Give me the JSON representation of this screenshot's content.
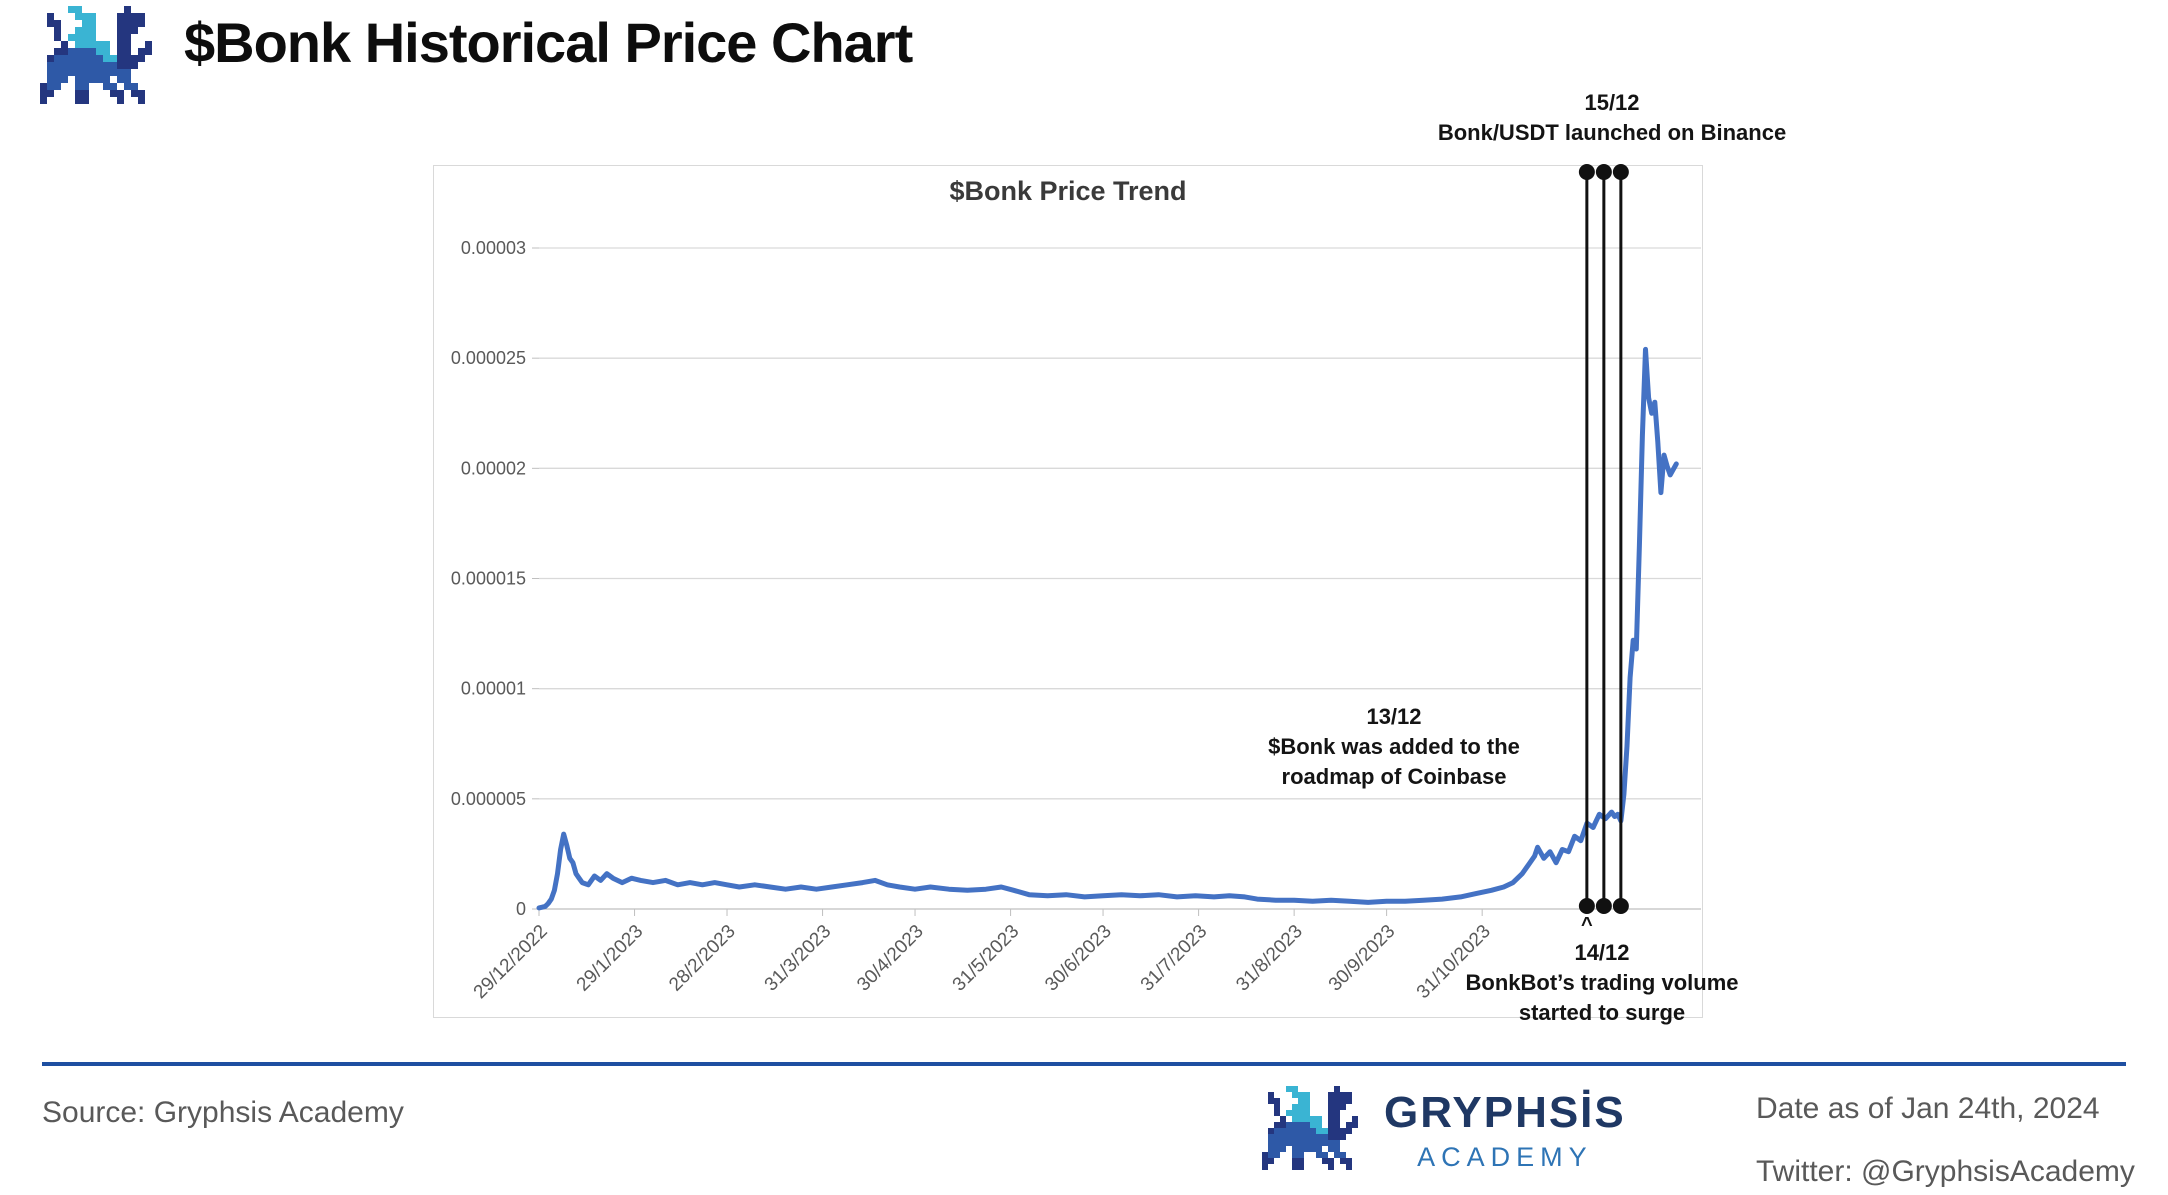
{
  "header": {
    "title": "$Bonk Historical Price Chart"
  },
  "branding": {
    "palette": {
      "N": "#24367f",
      "B": "#2e59a7",
      "C": "#3ab4d3"
    },
    "logo_pixels": [
      "....CC......N...",
      ".N...CCC...NNNN.",
      ".NN...CC...NNNN.",
      "..N..CCC...NNN..",
      "..N.CCCC...NN...",
      "...N.CCCCC.NN..N",
      "..NNBBBBCC.NN.NN",
      ".NBBBBBBBCCNNNN.",
      ".BBBBBBBBBBNNN..",
      ".BBBBBBBBBBBB...",
      ".BBB.BBBBB.BB...",
      "NBB..BB..BB.BB..",
      "NN...NN...NN.NN.",
      "N....NN....N..N."
    ]
  },
  "chart_data": {
    "type": "line",
    "title": "$Bonk Price Trend",
    "line_color": "#4472c4",
    "grid_color": "#d9d9d9",
    "axis_color": "#bfbfbf",
    "label_color": "#595959",
    "event_color": "#111111",
    "x_axis": {
      "start_date": "2022-12-29",
      "end_date": "2024-01-10",
      "ticks": [
        {
          "label": "29/12/2022",
          "date": "2022-12-29"
        },
        {
          "label": "29/1/2023",
          "date": "2023-01-29"
        },
        {
          "label": "28/2/2023",
          "date": "2023-02-28"
        },
        {
          "label": "31/3/2023",
          "date": "2023-03-31"
        },
        {
          "label": "30/4/2023",
          "date": "2023-04-30"
        },
        {
          "label": "31/5/2023",
          "date": "2023-05-31"
        },
        {
          "label": "30/6/2023",
          "date": "2023-06-30"
        },
        {
          "label": "31/7/2023",
          "date": "2023-07-31"
        },
        {
          "label": "31/8/2023",
          "date": "2023-08-31"
        },
        {
          "label": "30/9/2023",
          "date": "2023-09-30"
        },
        {
          "label": "31/10/2023",
          "date": "2023-10-31"
        }
      ]
    },
    "y_axis": {
      "min": 0,
      "max": 3e-05,
      "ticks": [
        {
          "label": "0.00003",
          "value": 3e-05
        },
        {
          "label": "0.000025",
          "value": 2.5e-05
        },
        {
          "label": "0.00002",
          "value": 2e-05
        },
        {
          "label": "0.000015",
          "value": 1.5e-05
        },
        {
          "label": "0.00001",
          "value": 1e-05
        },
        {
          "label": "0.000005",
          "value": 5e-06
        },
        {
          "label": "0",
          "value": 0
        }
      ]
    },
    "events": [
      {
        "date_label": "13/12",
        "date": "2023-12-13",
        "lines": [
          "$Bonk was added to the",
          "roadmap of Coinbase"
        ]
      },
      {
        "date_label": "14/12",
        "date": "2023-12-14",
        "pointer": "^",
        "lines": [
          "BonkBot’s trading volume",
          "started to surge"
        ]
      },
      {
        "date_label": "15/12",
        "date": "2023-12-15",
        "lines": [
          "Bonk/USDT launched on Binance"
        ]
      }
    ],
    "series": {
      "name": "$Bonk price (USD)",
      "points": [
        [
          "2022-12-29",
          5e-08
        ],
        [
          "2022-12-30",
          8e-08
        ],
        [
          "2022-12-31",
          1.2e-07
        ],
        [
          "2023-01-01",
          2.5e-07
        ],
        [
          "2023-01-02",
          4.5e-07
        ],
        [
          "2023-01-03",
          8.5e-07
        ],
        [
          "2023-01-04",
          1.6e-06
        ],
        [
          "2023-01-05",
          2.7e-06
        ],
        [
          "2023-01-06",
          3.4e-06
        ],
        [
          "2023-01-07",
          2.9e-06
        ],
        [
          "2023-01-08",
          2.3e-06
        ],
        [
          "2023-01-09",
          2.1e-06
        ],
        [
          "2023-01-10",
          1.6e-06
        ],
        [
          "2023-01-11",
          1.4e-06
        ],
        [
          "2023-01-12",
          1.2e-06
        ],
        [
          "2023-01-14",
          1.1e-06
        ],
        [
          "2023-01-16",
          1.5e-06
        ],
        [
          "2023-01-18",
          1.3e-06
        ],
        [
          "2023-01-20",
          1.6e-06
        ],
        [
          "2023-01-22",
          1.4e-06
        ],
        [
          "2023-01-25",
          1.2e-06
        ],
        [
          "2023-01-28",
          1.4e-06
        ],
        [
          "2023-01-31",
          1.3e-06
        ],
        [
          "2023-02-04",
          1.2e-06
        ],
        [
          "2023-02-08",
          1.3e-06
        ],
        [
          "2023-02-12",
          1.1e-06
        ],
        [
          "2023-02-16",
          1.2e-06
        ],
        [
          "2023-02-20",
          1.1e-06
        ],
        [
          "2023-02-24",
          1.2e-06
        ],
        [
          "2023-02-28",
          1.1e-06
        ],
        [
          "2023-03-04",
          1e-06
        ],
        [
          "2023-03-09",
          1.1e-06
        ],
        [
          "2023-03-14",
          1e-06
        ],
        [
          "2023-03-19",
          9e-07
        ],
        [
          "2023-03-24",
          1e-06
        ],
        [
          "2023-03-29",
          9e-07
        ],
        [
          "2023-04-03",
          1e-06
        ],
        [
          "2023-04-08",
          1.1e-06
        ],
        [
          "2023-04-13",
          1.2e-06
        ],
        [
          "2023-04-17",
          1.3e-06
        ],
        [
          "2023-04-21",
          1.1e-06
        ],
        [
          "2023-04-25",
          1e-06
        ],
        [
          "2023-04-30",
          9e-07
        ],
        [
          "2023-05-05",
          1e-06
        ],
        [
          "2023-05-11",
          9e-07
        ],
        [
          "2023-05-17",
          8.5e-07
        ],
        [
          "2023-05-23",
          9e-07
        ],
        [
          "2023-05-28",
          1e-06
        ],
        [
          "2023-06-01",
          8.5e-07
        ],
        [
          "2023-06-06",
          6.5e-07
        ],
        [
          "2023-06-12",
          6e-07
        ],
        [
          "2023-06-18",
          6.5e-07
        ],
        [
          "2023-06-24",
          5.5e-07
        ],
        [
          "2023-06-30",
          6e-07
        ],
        [
          "2023-07-06",
          6.5e-07
        ],
        [
          "2023-07-12",
          6e-07
        ],
        [
          "2023-07-18",
          6.5e-07
        ],
        [
          "2023-07-24",
          5.5e-07
        ],
        [
          "2023-07-30",
          6e-07
        ],
        [
          "2023-08-05",
          5.5e-07
        ],
        [
          "2023-08-10",
          6e-07
        ],
        [
          "2023-08-15",
          5.5e-07
        ],
        [
          "2023-08-19",
          4.5e-07
        ],
        [
          "2023-08-25",
          4e-07
        ],
        [
          "2023-08-31",
          4e-07
        ],
        [
          "2023-09-06",
          3.5e-07
        ],
        [
          "2023-09-12",
          4e-07
        ],
        [
          "2023-09-18",
          3.5e-07
        ],
        [
          "2023-09-24",
          3e-07
        ],
        [
          "2023-09-30",
          3.5e-07
        ],
        [
          "2023-10-06",
          3.5e-07
        ],
        [
          "2023-10-12",
          4e-07
        ],
        [
          "2023-10-18",
          4.5e-07
        ],
        [
          "2023-10-24",
          5.5e-07
        ],
        [
          "2023-10-29",
          7e-07
        ],
        [
          "2023-11-03",
          8.5e-07
        ],
        [
          "2023-11-07",
          1e-06
        ],
        [
          "2023-11-10",
          1.2e-06
        ],
        [
          "2023-11-13",
          1.6e-06
        ],
        [
          "2023-11-15",
          2e-06
        ],
        [
          "2023-11-17",
          2.4e-06
        ],
        [
          "2023-11-18",
          2.8e-06
        ],
        [
          "2023-11-20",
          2.3e-06
        ],
        [
          "2023-11-22",
          2.6e-06
        ],
        [
          "2023-11-24",
          2.1e-06
        ],
        [
          "2023-11-26",
          2.7e-06
        ],
        [
          "2023-11-28",
          2.6e-06
        ],
        [
          "2023-11-30",
          3.3e-06
        ],
        [
          "2023-12-02",
          3.1e-06
        ],
        [
          "2023-12-04",
          3.9e-06
        ],
        [
          "2023-12-06",
          3.7e-06
        ],
        [
          "2023-12-08",
          4.3e-06
        ],
        [
          "2023-12-10",
          4.1e-06
        ],
        [
          "2023-12-12",
          4.4e-06
        ],
        [
          "2023-12-13",
          4.2e-06
        ],
        [
          "2023-12-14",
          4.3e-06
        ],
        [
          "2023-12-15",
          4e-06
        ],
        [
          "2023-12-16",
          5.2e-06
        ],
        [
          "2023-12-17",
          7.4e-06
        ],
        [
          "2023-12-18",
          1.05e-05
        ],
        [
          "2023-12-19",
          1.22e-05
        ],
        [
          "2023-12-20",
          1.18e-05
        ],
        [
          "2023-12-21",
          1.65e-05
        ],
        [
          "2023-12-22",
          2.15e-05
        ],
        [
          "2023-12-23",
          2.54e-05
        ],
        [
          "2023-12-24",
          2.32e-05
        ],
        [
          "2023-12-25",
          2.25e-05
        ],
        [
          "2023-12-26",
          2.3e-05
        ],
        [
          "2023-12-27",
          2.12e-05
        ],
        [
          "2023-12-28",
          1.89e-05
        ],
        [
          "2023-12-29",
          2.06e-05
        ],
        [
          "2023-12-30",
          2.01e-05
        ],
        [
          "2023-12-31",
          1.97e-05
        ],
        [
          "2024-01-02",
          2.02e-05
        ]
      ]
    }
  },
  "footer": {
    "rule_color": "#1e4fa1",
    "source": "Source: Gryphsis Academy",
    "brand_name": "GRYPHSİS",
    "brand_sub": "ACADEMY",
    "date_note": "Date as of Jan 24th, 2024",
    "twitter": "Twitter: @GryphsisAcademy"
  }
}
